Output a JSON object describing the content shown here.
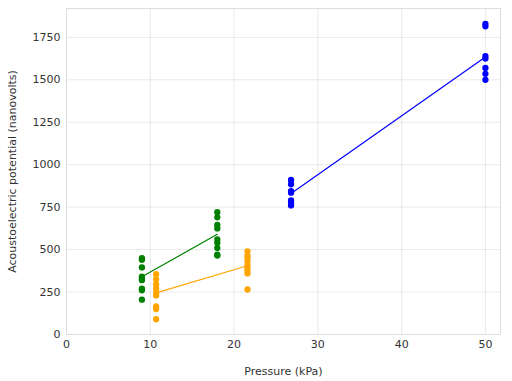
{
  "chart_data": {
    "type": "scatter",
    "x_label": "Pressure (kPa)",
    "y_label": "Acoustoelectric potential (nanovolts)",
    "xlim": [
      0,
      51.8
    ],
    "ylim": [
      0,
      1920
    ],
    "xticks": [
      0,
      10,
      20,
      30,
      40,
      50
    ],
    "yticks": [
      0,
      250,
      500,
      750,
      1000,
      1250,
      1500,
      1750
    ],
    "grid": true,
    "marker": "circle",
    "series": [
      {
        "color": "#008000",
        "x": [
          9,
          9,
          9,
          9,
          9,
          9,
          9,
          9,
          9,
          18,
          18,
          18,
          18,
          18,
          18,
          18,
          18,
          18
        ],
        "values": [
          450,
          440,
          395,
          340,
          330,
          320,
          270,
          260,
          205,
          720,
          690,
          645,
          625,
          560,
          540,
          510,
          470,
          465
        ],
        "trend": {
          "x": [
            9,
            18
          ],
          "values": [
            340,
            590
          ]
        }
      },
      {
        "color": "#ffa500",
        "x": [
          10.7,
          10.7,
          10.7,
          10.7,
          10.7,
          10.7,
          10.7,
          10.7,
          10.7,
          21.6,
          21.6,
          21.6,
          21.6,
          21.6,
          21.6,
          21.6,
          21.6,
          21.6
        ],
        "values": [
          355,
          325,
          295,
          270,
          245,
          230,
          165,
          150,
          90,
          490,
          465,
          450,
          430,
          405,
          390,
          375,
          360,
          265
        ],
        "trend": {
          "x": [
            10.7,
            21.6
          ],
          "values": [
            245,
            405
          ]
        }
      },
      {
        "color": "#0000ff",
        "x": [
          26.8,
          26.8,
          26.8,
          26.8,
          26.8,
          26.8,
          26.8,
          26.8,
          50,
          50,
          50,
          50,
          50,
          50,
          50
        ],
        "values": [
          910,
          885,
          845,
          835,
          790,
          780,
          770,
          760,
          1830,
          1815,
          1640,
          1625,
          1570,
          1535,
          1500
        ],
        "trend": {
          "x": [
            26.8,
            50
          ],
          "values": [
            830,
            1635
          ]
        }
      }
    ]
  }
}
